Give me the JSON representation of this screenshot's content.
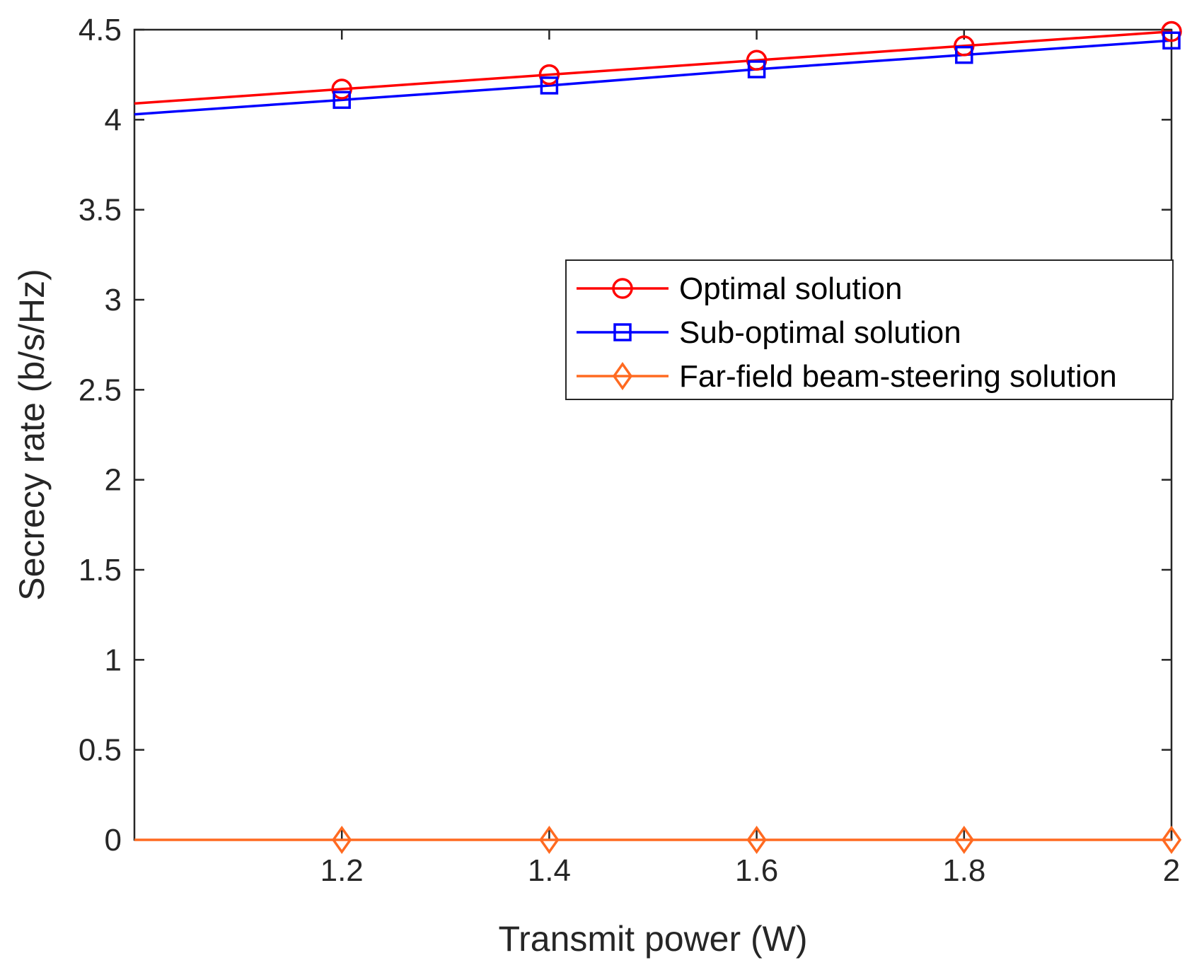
{
  "chart_data": {
    "type": "line",
    "title": "",
    "xlabel": "Transmit power (W)",
    "ylabel": "Secrecy rate (b/s/Hz)",
    "xlim": [
      1.0,
      2.0
    ],
    "ylim": [
      0,
      4.5
    ],
    "x": [
      1.0,
      1.2,
      1.4,
      1.6,
      1.8,
      2.0
    ],
    "x_ticks": [
      1.2,
      1.4,
      1.6,
      1.8,
      2.0
    ],
    "x_tick_labels": [
      "1.2",
      "1.4",
      "1.6",
      "1.8",
      "2"
    ],
    "y_ticks": [
      0,
      0.5,
      1,
      1.5,
      2,
      2.5,
      3,
      3.5,
      4,
      4.5
    ],
    "y_tick_labels": [
      "0",
      "0.5",
      "1",
      "1.5",
      "2",
      "2.5",
      "3",
      "3.5",
      "4",
      "4.5"
    ],
    "grid": false,
    "legend_position": "right-middle",
    "series": [
      {
        "name": "Optimal solution",
        "color": "#ff0000",
        "marker": "circle",
        "values": [
          4.09,
          4.17,
          4.25,
          4.33,
          4.41,
          4.49
        ]
      },
      {
        "name": "Sub-optimal solution",
        "color": "#0000ff",
        "marker": "square",
        "values": [
          4.03,
          4.11,
          4.19,
          4.28,
          4.36,
          4.44
        ]
      },
      {
        "name": "Far-field beam-steering solution",
        "color": "#ff6a21",
        "marker": "diamond",
        "values": [
          0,
          0,
          0,
          0,
          0,
          0
        ]
      }
    ]
  }
}
